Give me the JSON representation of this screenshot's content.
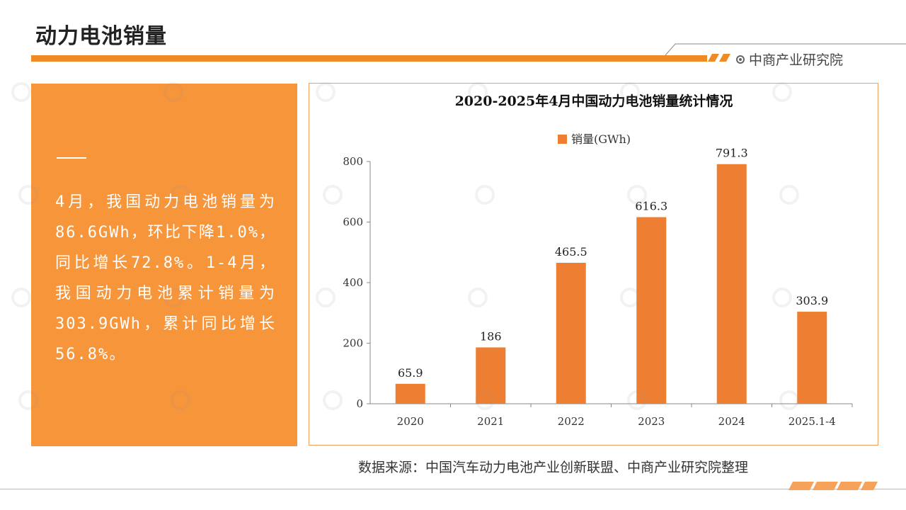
{
  "header": {
    "title": "动力电池销量",
    "brand": "中商产业研究院"
  },
  "info": {
    "text": "4月，我国动力电池销量为86.6GWh，环比下降1.0%，同比增长72.8%。1-4月，我国动力电池累计销量为303.9GWh，累计同比增长56.8%。"
  },
  "chart_data": {
    "type": "bar",
    "title": "2020-2025年4月中国动力电池销量统计情况",
    "categories": [
      "2020",
      "2021",
      "2022",
      "2023",
      "2024",
      "2025.1-4"
    ],
    "series": [
      {
        "name": "销量(GWh)",
        "values": [
          65.9,
          186,
          465.5,
          616.3,
          791.3,
          303.9
        ]
      }
    ],
    "value_labels": [
      "65.9",
      "186",
      "465.5",
      "616.3",
      "791.3",
      "303.9"
    ],
    "ylim": [
      0,
      800
    ],
    "yticks": [
      0,
      200,
      400,
      600,
      800
    ],
    "bar_color": "#ee7f32",
    "legend_position": "top-center",
    "grid": false
  },
  "footer": {
    "source": "数据来源：中国汽车动力电池产业创新联盟、中商产业研究院整理"
  },
  "colors": {
    "accent": "#f08a24",
    "panel": "#f7953b"
  }
}
